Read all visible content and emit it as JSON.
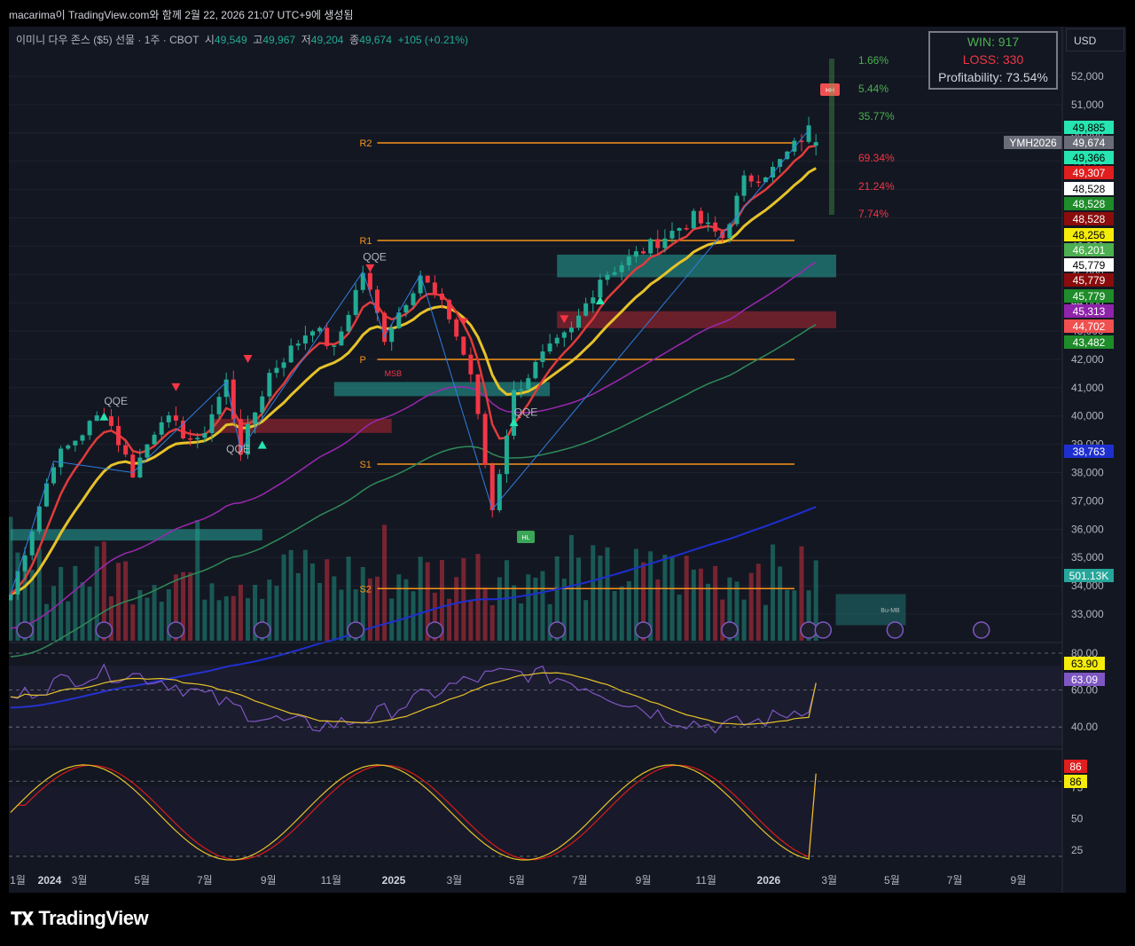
{
  "header": {
    "caption": "macarima이 TradingView.com와 함께 2월 22, 2026 21:07 UTC+9에 생성됨"
  },
  "symbol": {
    "name": "이미니 다우 존스 ($5) 선물 · 1주 · CBOT",
    "open_label": "시",
    "open": "49,549",
    "high_label": "고",
    "high": "49,967",
    "low_label": "저",
    "low": "49,204",
    "close_label": "종",
    "close": "49,674",
    "change": "+105 (+0.21%)"
  },
  "stats": {
    "win": "WIN: 917",
    "loss": "LOSS: 330",
    "profitability": "Profitability: 73.54%"
  },
  "currency": "USD",
  "colors": {
    "up": "#22ab94",
    "down": "#f23645",
    "bg": "#131722",
    "ema_fast": "#e03b3b",
    "ema_mid": "#e6c229",
    "ema_slow": "#9c27b0",
    "ema_200": "#2e8b57",
    "ema_long": "#1e2fd0",
    "sr": "#f7931a",
    "rsi": "#7e57c2",
    "rsi_ma": "#e6c229"
  },
  "chart_data": [
    {
      "type": "candlestick",
      "title": "",
      "ylabel": "",
      "ylim": [
        32000,
        53500
      ],
      "y_ticks": [
        "52,000",
        "51,000",
        "50,000",
        "49,000",
        "48,000",
        "47,000",
        "46,000",
        "45,000",
        "44,000",
        "43,000",
        "42,000",
        "41,000",
        "40,000",
        "39,000",
        "38,000",
        "37,000",
        "36,000",
        "35,000",
        "34,000",
        "33,000"
      ],
      "x_ticks": [
        "1월",
        "2024",
        "3월",
        "5월",
        "7월",
        "9월",
        "11월",
        "2025",
        "3월",
        "5월",
        "7월",
        "9월",
        "11월",
        "2026",
        "3월",
        "5월",
        "7월",
        "9월"
      ],
      "x_start": "2024-01-01",
      "x_end": "2026-09-30",
      "last_bar": "2026-02-16",
      "price_path": [
        {
          "date": "2023-12-25",
          "price": 33700
        },
        {
          "date": "2024-02-05",
          "price": 38400
        },
        {
          "date": "2024-03-25",
          "price": 40200
        },
        {
          "date": "2024-04-22",
          "price": 38000
        },
        {
          "date": "2024-05-20",
          "price": 40000
        },
        {
          "date": "2024-06-24",
          "price": 39000
        },
        {
          "date": "2024-07-22",
          "price": 41200
        },
        {
          "date": "2024-08-05",
          "price": 38800
        },
        {
          "date": "2024-09-02",
          "price": 41500
        },
        {
          "date": "2024-10-14",
          "price": 43200
        },
        {
          "date": "2024-11-04",
          "price": 42300
        },
        {
          "date": "2024-12-02",
          "price": 45100
        },
        {
          "date": "2024-12-23",
          "price": 42800
        },
        {
          "date": "2025-01-27",
          "price": 45000
        },
        {
          "date": "2025-02-24",
          "price": 43500
        },
        {
          "date": "2025-03-17",
          "price": 41500
        },
        {
          "date": "2025-04-07",
          "price": 36700
        },
        {
          "date": "2025-04-28",
          "price": 40800
        },
        {
          "date": "2025-05-26",
          "price": 42100
        },
        {
          "date": "2025-06-23",
          "price": 43000
        },
        {
          "date": "2025-07-21",
          "price": 44900
        },
        {
          "date": "2025-08-25",
          "price": 45700
        },
        {
          "date": "2025-09-29",
          "price": 46500
        },
        {
          "date": "2025-10-20",
          "price": 47000
        },
        {
          "date": "2025-11-17",
          "price": 46300
        },
        {
          "date": "2025-12-08",
          "price": 48300
        },
        {
          "date": "2026-01-05",
          "price": 48700
        },
        {
          "date": "2026-02-09",
          "price": 50100
        },
        {
          "date": "2026-02-16",
          "price": 49674
        }
      ],
      "series": [
        {
          "name": "YMH2026",
          "last": 49674
        },
        {
          "values_last": [
            49885,
            49366,
            49307,
            48528,
            48528,
            48528,
            48256,
            46201,
            45779,
            45779,
            45779,
            45313,
            44702,
            43482,
            38763
          ]
        }
      ],
      "levels": [
        {
          "name": "R2",
          "value": 49650
        },
        {
          "name": "R1",
          "value": 46200
        },
        {
          "name": "P",
          "value": 42000
        },
        {
          "name": "S1",
          "value": 38300
        },
        {
          "name": "S2",
          "value": 33900
        }
      ],
      "zones": [
        {
          "y_top": 45700,
          "y_bottom": 44900,
          "color": "#26a69a"
        },
        {
          "y_top": 43700,
          "y_bottom": 43100,
          "color": "#b22833"
        },
        {
          "y_top": 41200,
          "y_bottom": 40700,
          "color": "#26a69a"
        },
        {
          "y_top": 39900,
          "y_bottom": 39400,
          "color": "#b22833"
        },
        {
          "y_top": 36000,
          "y_bottom": 35600,
          "color": "#26a69a"
        }
      ],
      "annotations": [
        "QQE",
        "QQE",
        "QQE",
        "QQE",
        "MSB",
        "HH",
        "HL",
        "Bu-MB"
      ],
      "targets": [
        {
          "label": "1.66%",
          "color": "#4caf50"
        },
        {
          "label": "5.44%",
          "color": "#4caf50"
        },
        {
          "label": "35.77%",
          "color": "#4caf50"
        },
        {
          "label": "69.34%",
          "color": "#f23645"
        },
        {
          "label": "21.24%",
          "color": "#f23645"
        },
        {
          "label": "7.74%",
          "color": "#f23645"
        }
      ],
      "volume_last": "501.13K",
      "price_badges": [
        {
          "text": "49,885",
          "bg": "#26e5b0",
          "fg": "#000000",
          "value": 49885
        },
        {
          "text": "49,674",
          "bg": "#6a6d78",
          "fg": "#ffffff",
          "value": 49674,
          "label": "YMH2026"
        },
        {
          "text": "49,366",
          "bg": "#26e5b0",
          "fg": "#000000",
          "value": 49366
        },
        {
          "text": "49,307",
          "bg": "#e01e1e",
          "fg": "#ffffff",
          "value": 49307
        },
        {
          "text": "48,528",
          "bg": "#ffffff",
          "fg": "#000000",
          "value": 48528
        },
        {
          "text": "48,528",
          "bg": "#1f8c2a",
          "fg": "#ffffff",
          "value": 48528
        },
        {
          "text": "48,528",
          "bg": "#8b0c0c",
          "fg": "#ffffff",
          "value": 48528
        },
        {
          "text": "48,256",
          "bg": "#f5ec0a",
          "fg": "#000000",
          "value": 48256
        },
        {
          "text": "46,201",
          "bg": "#4caf50",
          "fg": "#ffffff",
          "value": 46201
        },
        {
          "text": "45,779",
          "bg": "#ffffff",
          "fg": "#000000",
          "value": 45779
        },
        {
          "text": "45,779",
          "bg": "#8b0c0c",
          "fg": "#ffffff",
          "value": 45779
        },
        {
          "text": "45,779",
          "bg": "#1f8c2a",
          "fg": "#ffffff",
          "value": 45779
        },
        {
          "text": "45,313",
          "bg": "#8e24aa",
          "fg": "#ffffff",
          "value": 45313
        },
        {
          "text": "44,702",
          "bg": "#f05050",
          "fg": "#ffffff",
          "value": 44702
        },
        {
          "text": "43,482",
          "bg": "#1f8c2a",
          "fg": "#ffffff",
          "value": 43482
        },
        {
          "text": "38,763",
          "bg": "#1e2fd0",
          "fg": "#ffffff",
          "value": 38763
        },
        {
          "text": "501.13K",
          "bg": "#26a69a",
          "fg": "#ffffff",
          "value": null
        }
      ]
    },
    {
      "type": "line",
      "title": "",
      "ylim": [
        30,
        80
      ],
      "y_ticks": [
        "80.00",
        "60.00",
        "40.00"
      ],
      "series": [
        {
          "name": "",
          "color": "#7e57c2",
          "last": 63.09
        },
        {
          "name": "",
          "color": "#e6c229",
          "last": 63.9
        }
      ],
      "badges": [
        {
          "text": "63.90",
          "bg": "#f5ec0a",
          "fg": "#000000"
        },
        {
          "text": "63.09",
          "bg": "#7e57c2",
          "fg": "#ffffff"
        }
      ]
    },
    {
      "type": "line",
      "title": "",
      "ylim": [
        15,
        100
      ],
      "y_ticks": [
        "75",
        "50",
        "25"
      ],
      "series": [
        {
          "name": "",
          "color": "#d81b1b",
          "last": 86
        },
        {
          "name": "",
          "color": "#e6c229",
          "last": 86
        }
      ],
      "badges": [
        {
          "text": "86",
          "bg": "#e01e1e",
          "fg": "#ffffff"
        },
        {
          "text": "86",
          "bg": "#f5ec0a",
          "fg": "#000000"
        }
      ]
    }
  ],
  "footer": {
    "logo": "TradingView"
  }
}
